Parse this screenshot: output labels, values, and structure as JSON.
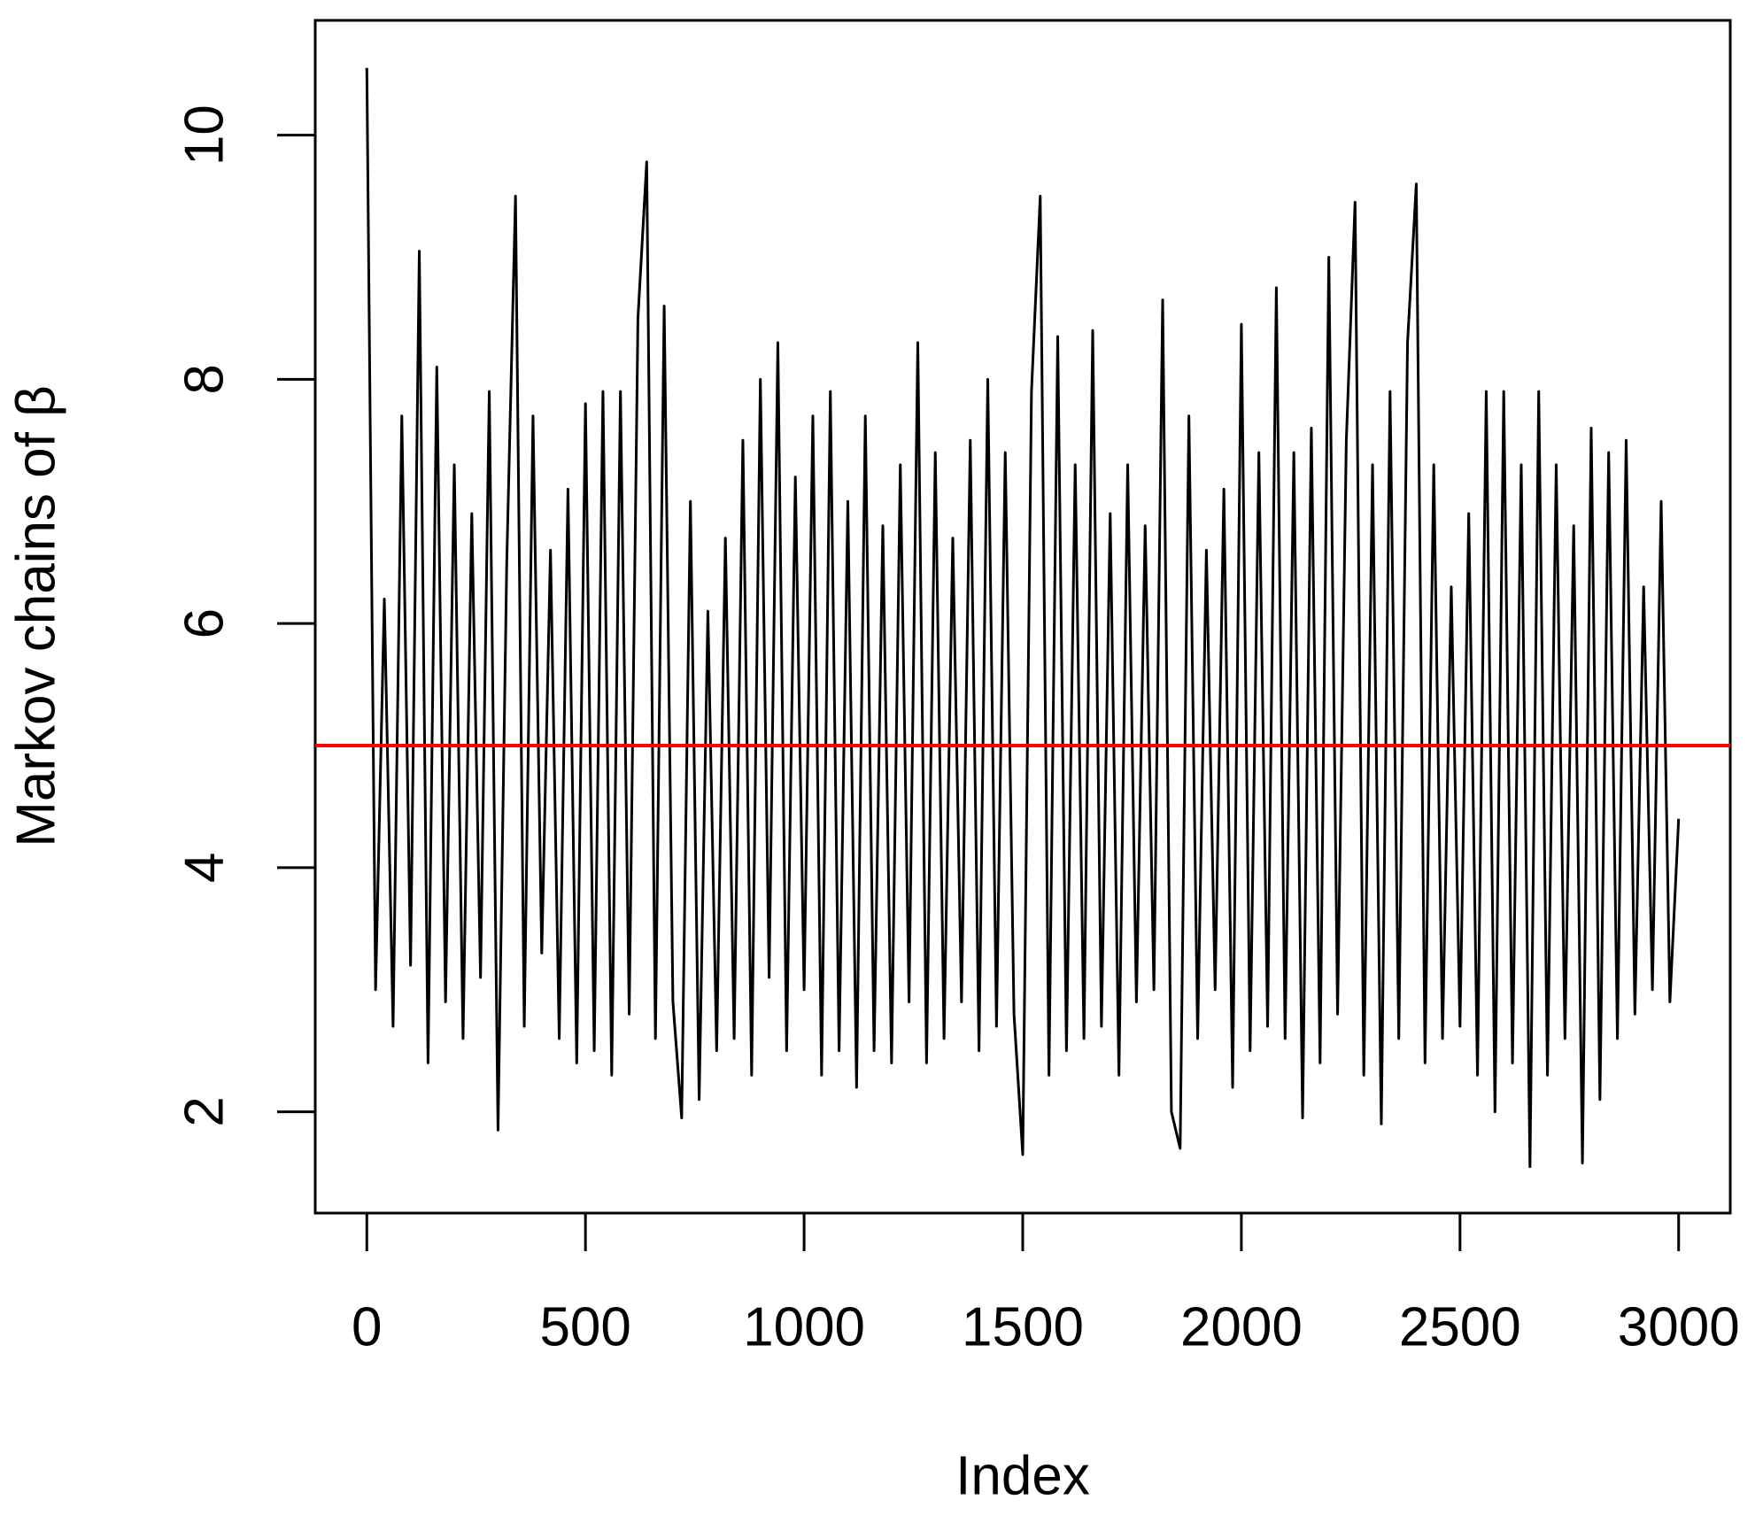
{
  "chart_data": {
    "type": "line",
    "xlabel": "Index",
    "ylabel": "Markov chains of  β",
    "x": [
      0,
      20,
      40,
      60,
      80,
      100,
      120,
      140,
      160,
      180,
      200,
      220,
      240,
      260,
      280,
      300,
      320,
      340,
      360,
      380,
      400,
      420,
      440,
      460,
      480,
      500,
      520,
      540,
      560,
      580,
      600,
      620,
      640,
      660,
      680,
      700,
      720,
      740,
      760,
      780,
      800,
      820,
      840,
      860,
      880,
      900,
      920,
      940,
      960,
      980,
      1000,
      1020,
      1040,
      1060,
      1080,
      1100,
      1120,
      1140,
      1160,
      1180,
      1200,
      1220,
      1240,
      1260,
      1280,
      1300,
      1320,
      1340,
      1360,
      1380,
      1400,
      1420,
      1440,
      1460,
      1480,
      1500,
      1520,
      1540,
      1560,
      1580,
      1600,
      1620,
      1640,
      1660,
      1680,
      1700,
      1720,
      1740,
      1760,
      1780,
      1800,
      1820,
      1840,
      1860,
      1880,
      1900,
      1920,
      1940,
      1960,
      1980,
      2000,
      2020,
      2040,
      2060,
      2080,
      2100,
      2120,
      2140,
      2160,
      2180,
      2200,
      2220,
      2240,
      2260,
      2280,
      2300,
      2320,
      2340,
      2360,
      2380,
      2400,
      2420,
      2440,
      2460,
      2480,
      2500,
      2520,
      2540,
      2560,
      2580,
      2600,
      2620,
      2640,
      2660,
      2680,
      2700,
      2720,
      2740,
      2760,
      2780,
      2800,
      2820,
      2840,
      2860,
      2880,
      2900,
      2920,
      2940,
      2960,
      2980,
      3000
    ],
    "values": [
      10.55,
      3.0,
      6.2,
      2.7,
      7.7,
      3.2,
      9.05,
      2.4,
      8.1,
      2.9,
      7.3,
      2.6,
      6.9,
      3.1,
      7.9,
      1.85,
      6.5,
      9.5,
      2.7,
      7.7,
      3.3,
      6.6,
      2.6,
      7.1,
      2.4,
      7.8,
      2.5,
      7.9,
      2.3,
      7.9,
      2.8,
      8.5,
      9.78,
      2.6,
      8.6,
      2.9,
      1.95,
      7.0,
      2.1,
      6.1,
      2.5,
      6.7,
      2.6,
      7.5,
      2.3,
      8.0,
      3.1,
      8.3,
      2.5,
      7.2,
      3.0,
      7.7,
      2.3,
      7.9,
      2.5,
      7.0,
      2.2,
      7.7,
      2.5,
      6.8,
      2.4,
      7.3,
      2.9,
      8.3,
      2.4,
      7.4,
      2.6,
      6.7,
      2.9,
      7.5,
      2.5,
      8.0,
      2.7,
      7.4,
      2.8,
      1.65,
      7.9,
      9.5,
      2.3,
      8.35,
      2.5,
      7.3,
      2.6,
      8.4,
      2.7,
      6.9,
      2.3,
      7.3,
      2.9,
      6.8,
      3.0,
      8.65,
      2.0,
      1.7,
      7.7,
      2.6,
      6.6,
      3.0,
      7.1,
      2.2,
      8.45,
      2.5,
      7.4,
      2.7,
      8.75,
      2.6,
      7.4,
      1.95,
      7.6,
      2.4,
      9.0,
      2.8,
      7.5,
      9.45,
      2.3,
      7.3,
      1.9,
      7.9,
      2.6,
      8.3,
      9.6,
      2.4,
      7.3,
      2.6,
      6.3,
      2.7,
      6.9,
      2.3,
      7.9,
      2.0,
      7.9,
      2.4,
      7.3,
      1.55,
      7.9,
      2.3,
      7.3,
      2.6,
      6.8,
      1.58,
      7.6,
      2.1,
      7.4,
      2.6,
      7.5,
      2.8,
      6.3,
      3.0,
      7.0,
      2.9,
      4.4
    ],
    "color": "#000000",
    "hline": {
      "value": 5,
      "color": "#ff0000"
    },
    "xlim": [
      -118,
      3118
    ],
    "ylim": [
      1.17,
      10.94
    ],
    "xticks": [
      0,
      500,
      1000,
      1500,
      2000,
      2500,
      3000
    ],
    "yticks": [
      2,
      4,
      6,
      8,
      10
    ]
  }
}
